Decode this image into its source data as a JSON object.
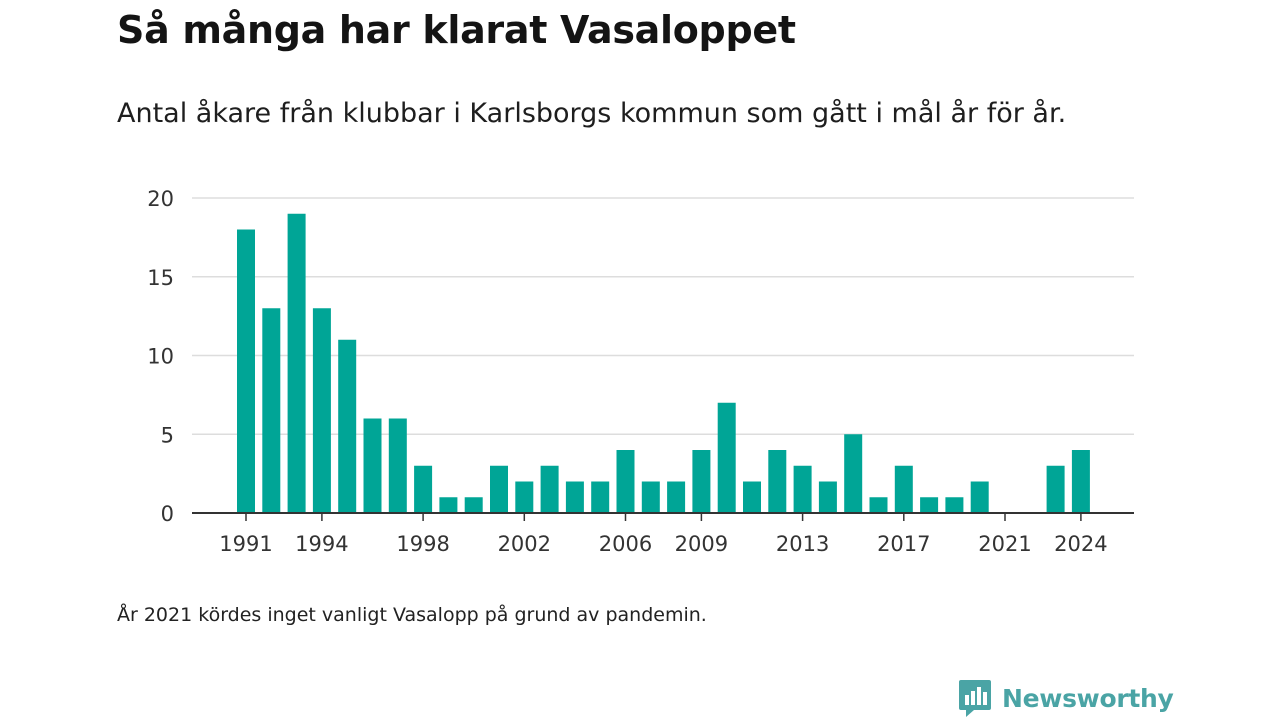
{
  "title": "Så många har klarat Vasaloppet",
  "subtitle": "Antal åkare från klubbar i Karlsborgs kommun som gått i mål år för år.",
  "footnote": "År 2021 kördes inget vanligt Vasalopp på grund av pandemin.",
  "brand": {
    "name": "Newsworthy",
    "icon": "newsworthy-logo-icon",
    "color": "#4aa4a5"
  },
  "colors": {
    "bar": "#00a596",
    "grid": "#dddddd",
    "axis": "#333333"
  },
  "chart_data": {
    "type": "bar",
    "x": [
      1991,
      1992,
      1993,
      1994,
      1995,
      1996,
      1997,
      1998,
      1999,
      2000,
      2001,
      2002,
      2003,
      2004,
      2005,
      2006,
      2007,
      2008,
      2009,
      2010,
      2011,
      2012,
      2013,
      2014,
      2015,
      2016,
      2017,
      2018,
      2019,
      2020,
      2021,
      2022,
      2023,
      2024
    ],
    "values": [
      18,
      13,
      19,
      13,
      11,
      6,
      6,
      3,
      1,
      1,
      3,
      2,
      3,
      2,
      2,
      4,
      2,
      2,
      4,
      7,
      2,
      4,
      3,
      2,
      5,
      1,
      3,
      1,
      1,
      2,
      0,
      0,
      3,
      4
    ],
    "xticks": [
      "1991",
      "1994",
      "1998",
      "2002",
      "2006",
      "2009",
      "2013",
      "2017",
      "2021",
      "2024"
    ],
    "yticks": [
      "0",
      "5",
      "10",
      "15",
      "20"
    ],
    "ylim": [
      0,
      20
    ],
    "xlabel": "",
    "ylabel": "",
    "grid": true,
    "legend": "none"
  }
}
